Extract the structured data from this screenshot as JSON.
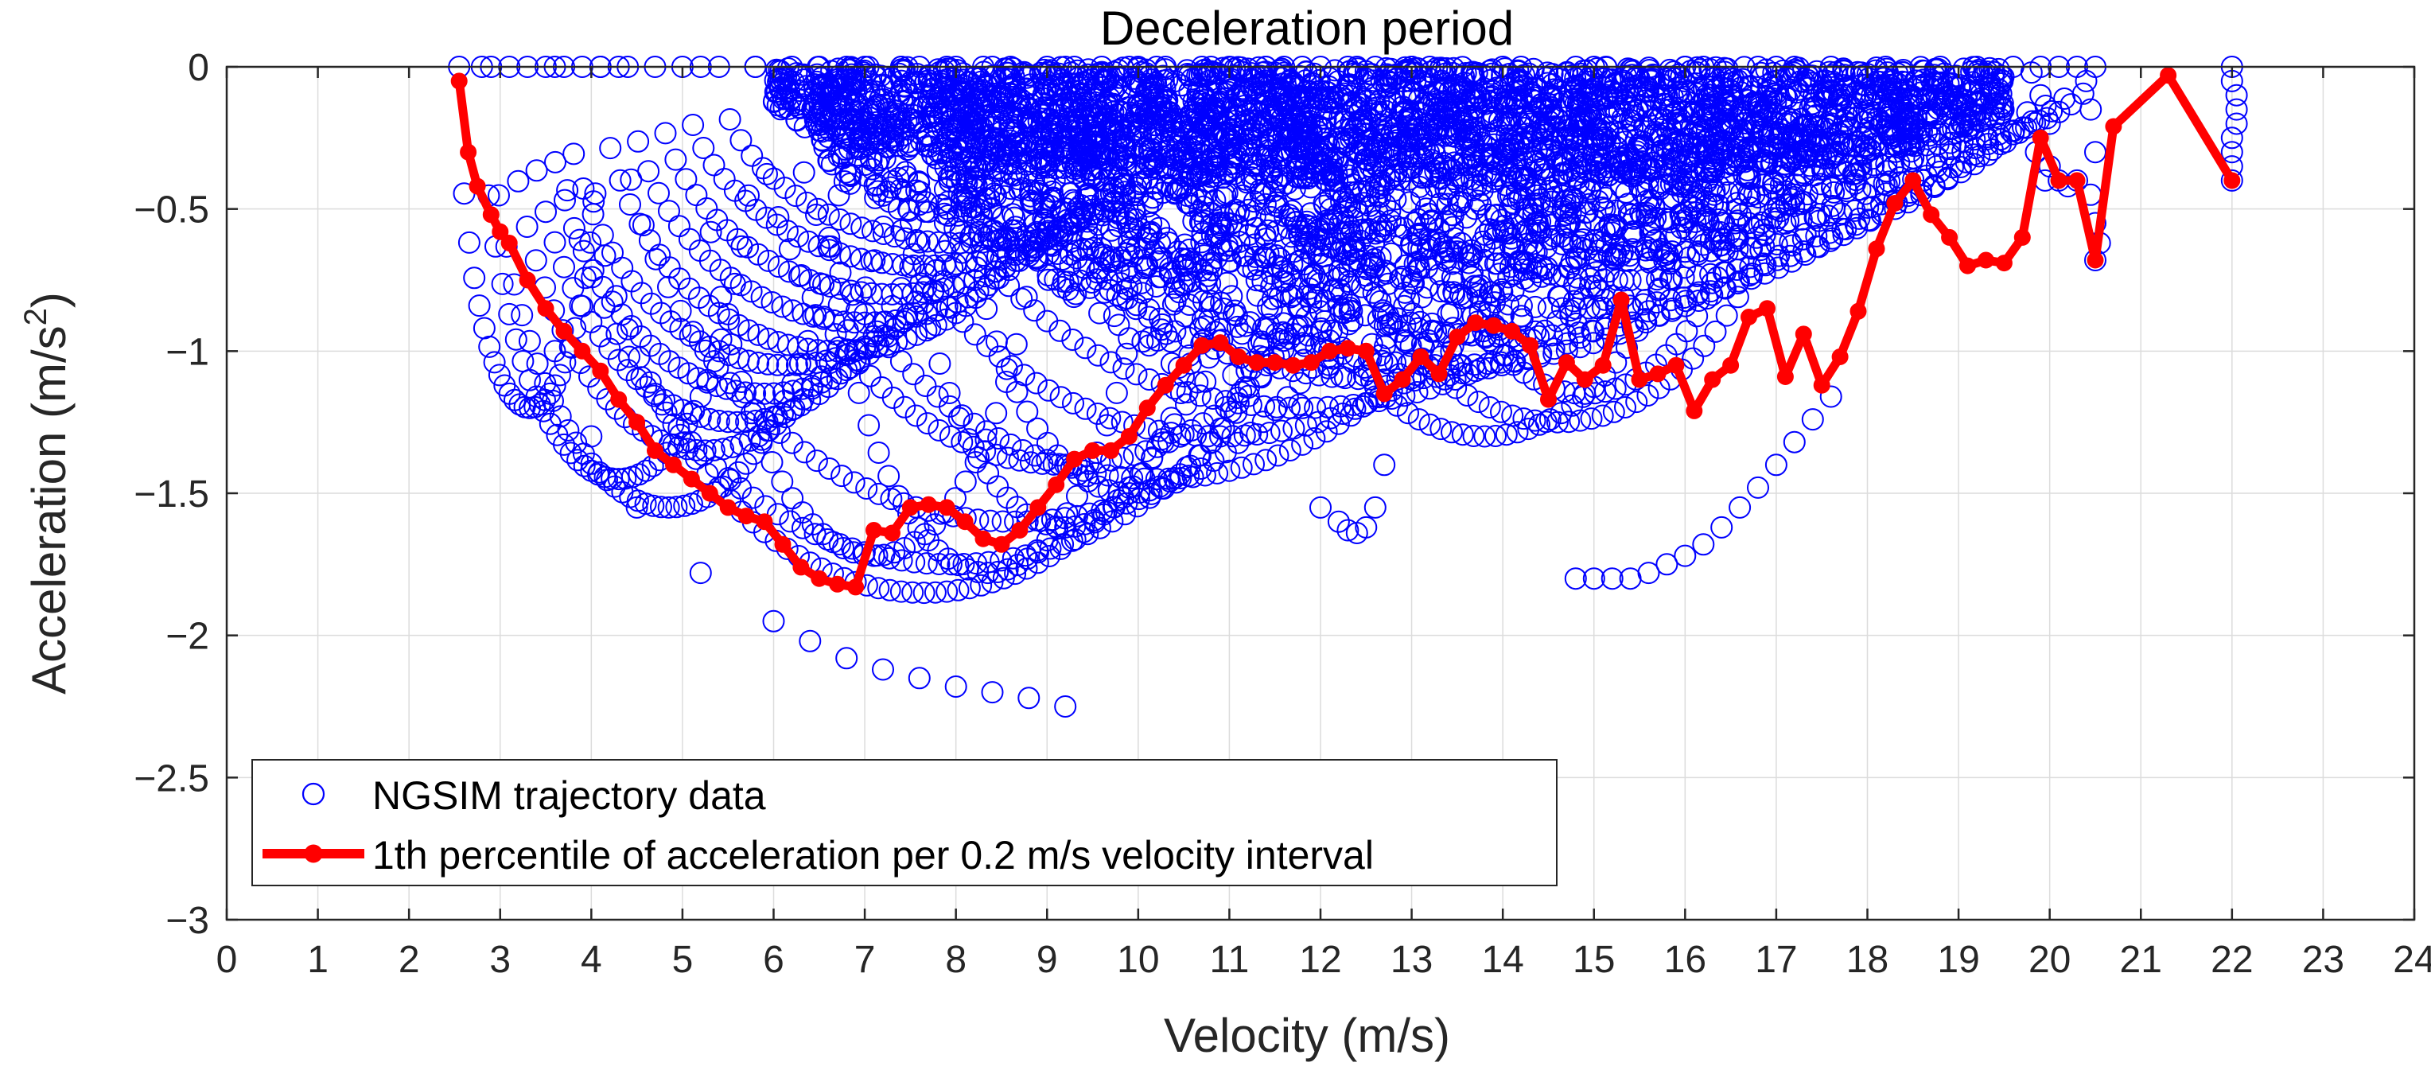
{
  "chart_data": {
    "type": "scatter",
    "title": "Deceleration period",
    "xlabel": "Velocity (m/s)",
    "ylabel_main": "Acceleration (m/s",
    "ylabel_sup": "2",
    "ylabel_close": ")",
    "xlim": [
      0,
      24
    ],
    "ylim": [
      -3,
      0
    ],
    "x_ticks": [
      0,
      1,
      2,
      3,
      4,
      5,
      6,
      7,
      8,
      9,
      10,
      11,
      12,
      13,
      14,
      15,
      16,
      17,
      18,
      19,
      20,
      21,
      22,
      23,
      24
    ],
    "x_tick_labels": [
      "0",
      "1",
      "2",
      "3",
      "4",
      "5",
      "6",
      "7",
      "8",
      "9",
      "10",
      "11",
      "12",
      "13",
      "14",
      "15",
      "16",
      "17",
      "18",
      "19",
      "20",
      "21",
      "22",
      "23",
      "24"
    ],
    "y_ticks": [
      0,
      -0.5,
      -1,
      -1.5,
      -2,
      -2.5,
      -3
    ],
    "y_tick_labels": [
      "0",
      "−0.5",
      "−1",
      "−1.5",
      "−2",
      "−2.5",
      "−3"
    ],
    "grid": true,
    "legend_position": "bottom-left",
    "colors": {
      "scatter": "#0000ff",
      "percentile": "#ff0000",
      "axis": "#262626",
      "grid": "#dcdcdc"
    },
    "series": [
      {
        "name": "NGSIM trajectory data",
        "marker": "open-circle",
        "arcs": [
          {
            "v0": 2.55,
            "v1": 4.1,
            "depth": 1.2,
            "n": 28
          },
          {
            "v0": 2.8,
            "v1": 5.8,
            "depth": 1.45,
            "n": 40
          },
          {
            "v0": 2.9,
            "v1": 6.8,
            "depth": 1.55,
            "n": 46
          },
          {
            "v0": 3.1,
            "v1": 7.4,
            "depth": 1.35,
            "n": 44
          },
          {
            "v0": 3.3,
            "v1": 7.9,
            "depth": 1.25,
            "n": 46
          },
          {
            "v0": 3.5,
            "v1": 8.3,
            "depth": 1.15,
            "n": 46
          },
          {
            "v0": 3.7,
            "v1": 8.6,
            "depth": 1.05,
            "n": 46
          },
          {
            "v0": 4.1,
            "v1": 9.3,
            "depth": 1.0,
            "n": 48
          },
          {
            "v0": 4.4,
            "v1": 9.6,
            "depth": 0.9,
            "n": 46
          },
          {
            "v0": 4.7,
            "v1": 9.9,
            "depth": 0.8,
            "n": 46
          },
          {
            "v0": 5.0,
            "v1": 10.3,
            "depth": 0.7,
            "n": 46
          },
          {
            "v0": 5.4,
            "v1": 10.7,
            "depth": 0.62,
            "n": 44
          },
          {
            "v0": 3.9,
            "v1": 11.4,
            "depth": 1.85,
            "n": 60
          },
          {
            "v0": 3.6,
            "v1": 12.3,
            "depth": 1.75,
            "n": 64
          },
          {
            "v0": 4.3,
            "v1": 13.0,
            "depth": 1.6,
            "n": 64
          },
          {
            "v0": 5.8,
            "v1": 12.6,
            "depth": 1.4,
            "n": 54
          },
          {
            "v0": 6.2,
            "v1": 14.2,
            "depth": 1.45,
            "n": 60
          },
          {
            "v0": 7.0,
            "v1": 14.8,
            "depth": 1.3,
            "n": 58
          },
          {
            "v0": 7.6,
            "v1": 16.0,
            "depth": 1.2,
            "n": 60
          },
          {
            "v0": 8.4,
            "v1": 17.0,
            "depth": 1.1,
            "n": 60
          },
          {
            "v0": 9.2,
            "v1": 17.6,
            "depth": 1.05,
            "n": 58
          },
          {
            "v0": 10.0,
            "v1": 18.2,
            "depth": 0.95,
            "n": 56
          },
          {
            "v0": 10.8,
            "v1": 18.8,
            "depth": 0.85,
            "n": 54
          },
          {
            "v0": 11.6,
            "v1": 19.2,
            "depth": 0.75,
            "n": 52
          },
          {
            "v0": 12.4,
            "v1": 19.6,
            "depth": 0.65,
            "n": 50
          },
          {
            "v0": 13.2,
            "v1": 19.9,
            "depth": 0.55,
            "n": 46
          },
          {
            "v0": 14.0,
            "v1": 20.1,
            "depth": 0.45,
            "n": 42
          },
          {
            "v0": 15.0,
            "v1": 20.3,
            "depth": 0.35,
            "n": 38
          },
          {
            "v0": 16.0,
            "v1": 20.5,
            "depth": 0.28,
            "n": 34
          },
          {
            "v0": 11.4,
            "v1": 16.2,
            "depth": 1.3,
            "n": 40
          },
          {
            "v0": 12.0,
            "v1": 17.2,
            "depth": 1.25,
            "n": 42
          },
          {
            "v0": 13.0,
            "v1": 16.8,
            "depth": 1.15,
            "n": 34
          },
          {
            "v0": 5.2,
            "v1": 9.0,
            "depth": 1.72,
            "n": 34
          },
          {
            "v0": 6.5,
            "v1": 10.2,
            "depth": 1.78,
            "n": 34
          },
          {
            "v0": 7.4,
            "v1": 11.0,
            "depth": 1.62,
            "n": 34
          },
          {
            "v0": 8.0,
            "v1": 11.8,
            "depth": 1.5,
            "n": 34
          }
        ],
        "clusters": [
          {
            "vmin": 6.0,
            "vmax": 19.5,
            "amax": 0.4,
            "n": 1600
          },
          {
            "vmin": 6.5,
            "vmax": 18.5,
            "amax": 0.75,
            "n": 1200
          },
          {
            "vmin": 8.0,
            "vmax": 16.5,
            "amax": 1.05,
            "n": 700
          },
          {
            "vmin": 9.0,
            "vmax": 15.0,
            "amax": 1.2,
            "n": 300
          }
        ],
        "segments": [
          {
            "x": [
              3.6,
              4.0,
              4.5,
              5.2,
              6.0,
              6.4,
              6.8,
              7.2,
              7.6,
              8.0,
              8.4,
              8.8,
              9.2
            ],
            "y": [
              -1.0,
              -1.3,
              -1.55,
              -1.78,
              -1.95,
              -2.02,
              -2.08,
              -2.12,
              -2.15,
              -2.18,
              -2.2,
              -2.22,
              -2.25
            ]
          },
          {
            "x": [
              14.8,
              15.0,
              15.2,
              15.4,
              15.6,
              15.8,
              16.0,
              16.2,
              16.4,
              16.6,
              16.8,
              17.0,
              17.2,
              17.4,
              17.6
            ],
            "y": [
              -1.8,
              -1.8,
              -1.8,
              -1.8,
              -1.78,
              -1.75,
              -1.72,
              -1.68,
              -1.62,
              -1.55,
              -1.48,
              -1.4,
              -1.32,
              -1.24,
              -1.16
            ]
          },
          {
            "x": [
              12.0,
              12.2,
              12.3,
              12.4,
              12.5,
              12.6,
              12.7
            ],
            "y": [
              -1.55,
              -1.6,
              -1.63,
              -1.64,
              -1.62,
              -1.55,
              -1.4
            ]
          },
          {
            "x": [
              19.8,
              19.9,
              20.0,
              19.85,
              19.95
            ],
            "y": [
              -0.02,
              -0.1,
              -0.2,
              -0.3,
              -0.4
            ]
          },
          {
            "x": [
              20.4,
              20.45,
              20.5,
              20.45,
              20.5,
              20.55,
              20.5
            ],
            "y": [
              -0.05,
              -0.15,
              -0.3,
              -0.45,
              -0.55,
              -0.62,
              -0.68
            ]
          },
          {
            "x": [
              22.0,
              22.0,
              22.05,
              22.05,
              22.05,
              22.0,
              22.0,
              22.0,
              22.0
            ],
            "y": [
              0.0,
              -0.05,
              -0.1,
              -0.15,
              -0.2,
              -0.25,
              -0.3,
              -0.35,
              -0.4
            ]
          },
          {
            "x": [
              20.0,
              20.1,
              20.2,
              20.3
            ],
            "y": [
              -0.35,
              -0.4,
              -0.42,
              -0.4
            ]
          }
        ]
      },
      {
        "name": "1th percentile of acceleration per 0.2 m/s velocity interval",
        "marker": "filled-circle",
        "x": [
          2.55,
          2.65,
          2.75,
          2.9,
          3.0,
          3.1,
          3.3,
          3.5,
          3.7,
          3.9,
          4.1,
          4.3,
          4.5,
          4.7,
          4.9,
          5.1,
          5.3,
          5.5,
          5.7,
          5.9,
          6.1,
          6.3,
          6.5,
          6.7,
          6.9,
          7.1,
          7.3,
          7.5,
          7.7,
          7.9,
          8.1,
          8.3,
          8.5,
          8.7,
          8.9,
          9.1,
          9.3,
          9.5,
          9.7,
          9.9,
          10.1,
          10.3,
          10.5,
          10.7,
          10.9,
          11.1,
          11.3,
          11.5,
          11.7,
          11.9,
          12.1,
          12.3,
          12.5,
          12.7,
          12.9,
          13.1,
          13.3,
          13.5,
          13.7,
          13.9,
          14.1,
          14.3,
          14.5,
          14.7,
          14.9,
          15.1,
          15.3,
          15.5,
          15.7,
          15.9,
          16.1,
          16.3,
          16.5,
          16.7,
          16.9,
          17.1,
          17.3,
          17.5,
          17.7,
          17.9,
          18.1,
          18.3,
          18.5,
          18.7,
          18.9,
          19.1,
          19.3,
          19.5,
          19.7,
          19.9,
          20.1,
          20.3,
          20.5,
          20.7,
          21.3,
          22.0
        ],
        "y": [
          -0.05,
          -0.3,
          -0.42,
          -0.52,
          -0.58,
          -0.62,
          -0.75,
          -0.85,
          -0.93,
          -1.0,
          -1.07,
          -1.17,
          -1.25,
          -1.35,
          -1.4,
          -1.45,
          -1.5,
          -1.55,
          -1.58,
          -1.6,
          -1.68,
          -1.76,
          -1.8,
          -1.82,
          -1.83,
          -1.63,
          -1.64,
          -1.55,
          -1.54,
          -1.55,
          -1.6,
          -1.66,
          -1.68,
          -1.63,
          -1.55,
          -1.47,
          -1.38,
          -1.35,
          -1.35,
          -1.3,
          -1.2,
          -1.12,
          -1.05,
          -0.98,
          -0.97,
          -1.02,
          -1.04,
          -1.04,
          -1.05,
          -1.04,
          -1.0,
          -0.99,
          -1.0,
          -1.15,
          -1.1,
          -1.02,
          -1.08,
          -0.95,
          -0.9,
          -0.91,
          -0.93,
          -0.98,
          -1.17,
          -1.04,
          -1.1,
          -1.05,
          -0.82,
          -1.1,
          -1.08,
          -1.05,
          -1.21,
          -1.1,
          -1.05,
          -0.88,
          -0.85,
          -1.09,
          -0.94,
          -1.12,
          -1.02,
          -0.86,
          -0.64,
          -0.48,
          -0.4,
          -0.52,
          -0.6,
          -0.7,
          -0.68,
          -0.69,
          -0.6,
          -0.25,
          -0.4,
          -0.4,
          -0.68,
          -0.21,
          -0.03,
          -0.4
        ]
      }
    ]
  }
}
